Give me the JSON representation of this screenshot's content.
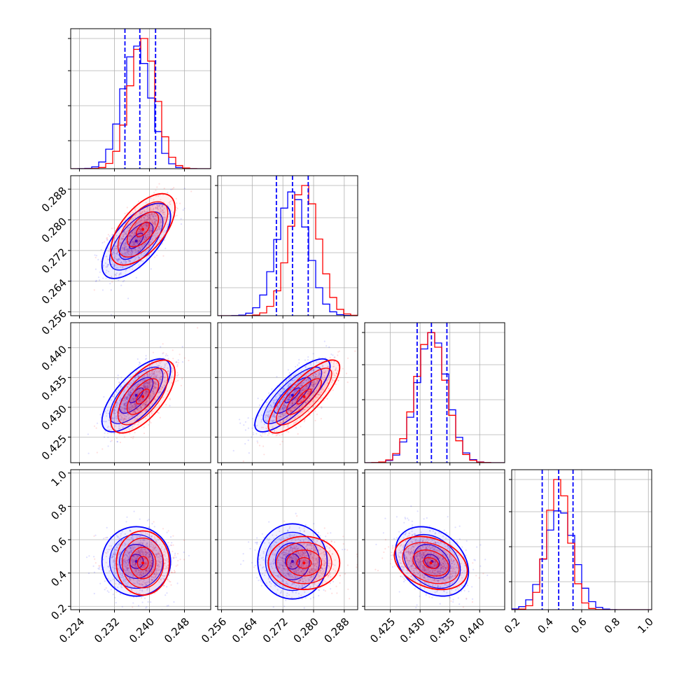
{
  "chart_data": {
    "type": "corner",
    "grid": true,
    "colors": {
      "series_a": "#0000ff",
      "series_b": "#ff0000"
    },
    "parameters": [
      {
        "range": [
          0.222,
          0.254
        ],
        "ticks": [
          0.224,
          0.232,
          0.24,
          0.248
        ],
        "tick_labels": [
          "0.224",
          "0.232",
          "0.240",
          "0.248"
        ],
        "quantiles": [
          0.2344,
          0.2378,
          0.2414
        ],
        "mean": [
          0.237,
          0.2385
        ],
        "sd": [
          0.0032,
          0.003
        ]
      },
      {
        "range": [
          0.255,
          0.2915
        ],
        "ticks": [
          0.256,
          0.264,
          0.272,
          0.28,
          0.288
        ],
        "tick_labels": [
          "0.256",
          "0.264",
          "0.272",
          "0.280",
          "0.288"
        ],
        "quantiles": [
          0.2703,
          0.2745,
          0.2786
        ],
        "mean": [
          0.2745,
          0.2775
        ],
        "sd": [
          0.004,
          0.0038
        ]
      },
      {
        "range": [
          0.4207,
          0.4442
        ],
        "ticks": [
          0.425,
          0.43,
          0.435,
          0.44
        ],
        "tick_labels": [
          "0.425",
          "0.430",
          "0.435",
          "0.440"
        ],
        "quantiles": [
          0.4295,
          0.4319,
          0.4345
        ],
        "mean": [
          0.432,
          0.4318
        ],
        "sd": [
          0.0025,
          0.0025
        ]
      },
      {
        "range": [
          0.18,
          1.02
        ],
        "ticks": [
          0.2,
          0.4,
          0.6,
          0.8,
          1.0
        ],
        "tick_labels": [
          "0.2",
          "0.4",
          "0.6",
          "0.8",
          "1.0"
        ],
        "quantiles": [
          0.363,
          0.462,
          0.548
        ],
        "mean": [
          0.47,
          0.46
        ],
        "sd": [
          0.085,
          0.065
        ]
      }
    ],
    "correlations": [
      {
        "pair": [
          0,
          1
        ],
        "rho": [
          0.65,
          0.6
        ]
      },
      {
        "pair": [
          0,
          2
        ],
        "rho": [
          0.7,
          0.65
        ]
      },
      {
        "pair": [
          1,
          2
        ],
        "rho": [
          0.8,
          0.8
        ]
      },
      {
        "pair": [
          0,
          3
        ],
        "rho": [
          0.0,
          0.0
        ]
      },
      {
        "pair": [
          1,
          3
        ],
        "rho": [
          0.0,
          0.0
        ]
      },
      {
        "pair": [
          2,
          3
        ],
        "rho": [
          -0.3,
          -0.3
        ]
      }
    ]
  }
}
